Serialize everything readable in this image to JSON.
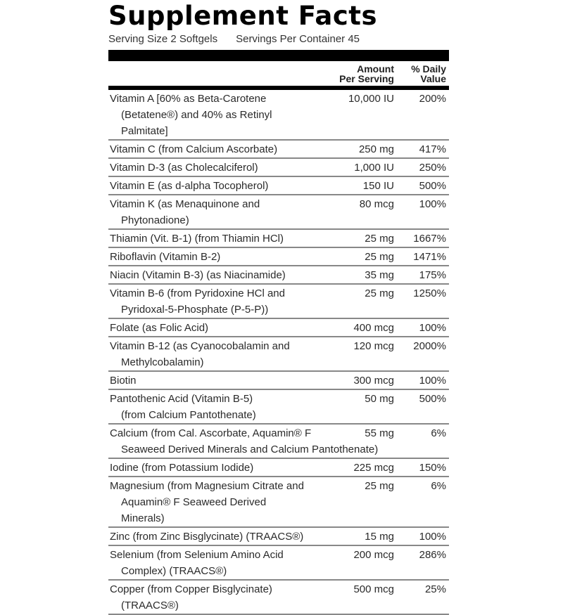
{
  "title": "Supplement Facts",
  "serving_size": "Serving Size 2 Softgels",
  "servings_per_container": "Servings Per Container 45",
  "header": {
    "amount_line1": "Amount",
    "amount_line2": "Per Serving",
    "dv_line1": "% Daily",
    "dv_line2": "Value"
  },
  "rows": [
    {
      "name": "Vitamin A [60% as Beta-Carotene",
      "name2": "(Betatene®) and 40% as Retinyl Palmitate]",
      "amount": "10,000 IU",
      "dv": "200%"
    },
    {
      "name": "Vitamin C (from Calcium Ascorbate)",
      "amount": "250 mg",
      "dv": "417%"
    },
    {
      "name": "Vitamin D-3 (as Cholecalciferol)",
      "amount": "1,000 IU",
      "dv": "250%"
    },
    {
      "name": "Vitamin E (as d-alpha Tocopherol)",
      "amount": "150 IU",
      "dv": "500%"
    },
    {
      "name": "Vitamin K (as Menaquinone and",
      "name2": "Phytonadione)",
      "amount": "80 mcg",
      "dv": "100%"
    },
    {
      "name": "Thiamin (Vit. B-1) (from Thiamin HCl)",
      "amount": "25 mg",
      "dv": "1667%"
    },
    {
      "name": "Riboflavin (Vitamin B-2)",
      "amount": "25 mg",
      "dv": "1471%"
    },
    {
      "name": "Niacin (Vitamin B-3) (as Niacinamide)",
      "amount": "35 mg",
      "dv": "175%"
    },
    {
      "name": "Vitamin B-6 (from Pyridoxine HCl and",
      "name2": "Pyridoxal-5-Phosphate (P-5-P))",
      "amount": "25 mg",
      "dv": "1250%"
    },
    {
      "name": "Folate (as Folic Acid)",
      "amount": "400 mcg",
      "dv": "100%"
    },
    {
      "name": "Vitamin B-12 (as Cyanocobalamin and",
      "name2": "Methylcobalamin)",
      "amount": "120 mcg",
      "dv": "2000%"
    },
    {
      "name": "Biotin",
      "amount": "300 mcg",
      "dv": "100%"
    },
    {
      "name": "Pantothenic Acid (Vitamin B-5)",
      "name2": "(from Calcium Pantothenate)",
      "amount": "50 mg",
      "dv": "500%"
    },
    {
      "name": "Calcium (from Cal. Ascorbate, Aquamin® F",
      "name2": "Seaweed Derived Minerals and Calcium Pantothenate)",
      "amount": "55 mg",
      "dv": "6%"
    },
    {
      "name": "Iodine (from Potassium Iodide)",
      "amount": "225 mcg",
      "dv": "150%"
    },
    {
      "name": "Magnesium (from Magnesium Citrate and",
      "name2": "Aquamin® F Seaweed Derived Minerals)",
      "amount": "25 mg",
      "dv": "6%"
    },
    {
      "name": "Zinc (from Zinc Bisglycinate) (TRAACS®)",
      "amount": "15 mg",
      "dv": "100%"
    },
    {
      "name": "Selenium (from Selenium Amino Acid",
      "name2": "Complex) (TRAACS®)",
      "amount": "200 mcg",
      "dv": "286%"
    },
    {
      "name": "Copper (from Copper Bisglycinate)",
      "name2": "(TRAACS®)",
      "amount": "500 mcg",
      "dv": "25%"
    }
  ]
}
